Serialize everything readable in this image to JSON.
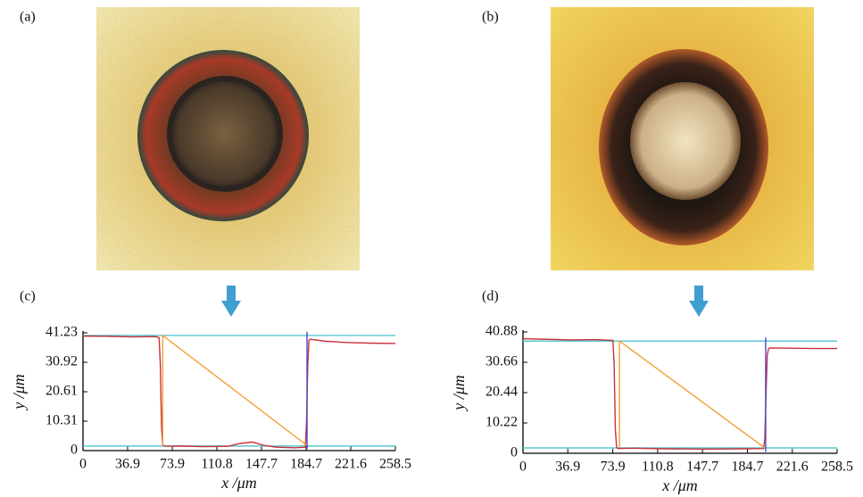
{
  "panel_labels": [
    "(a)",
    "(b)",
    "(c)",
    "(d)"
  ],
  "chart_data": [
    {
      "type": "line",
      "xlabel": "x /μm",
      "ylabel": "y /μm",
      "xlim": [
        0,
        258.5
      ],
      "xticks": [
        0,
        36.9,
        73.9,
        110.8,
        147.7,
        184.7,
        221.6,
        258.5
      ],
      "ylim": [
        0,
        41.23
      ],
      "yticks": [
        0,
        10.31,
        20.61,
        30.92,
        41.23
      ],
      "series": [
        {
          "color": "#5cc6d6",
          "x": [
            0,
            258.5
          ],
          "values": [
            40.3,
            40.3
          ]
        },
        {
          "color": "#5cc6d6",
          "x": [
            0,
            258.5
          ],
          "values": [
            1.6,
            1.6
          ]
        },
        {
          "color": "#c8323a",
          "x": [
            0,
            20,
            40,
            60,
            63,
            64,
            65,
            66,
            68,
            80,
            100,
            120,
            130,
            140,
            150,
            160,
            175,
            184,
            185,
            186,
            187,
            188,
            200,
            220,
            240,
            258.5
          ],
          "values": [
            40.1,
            40.0,
            39.8,
            39.9,
            39.5,
            30,
            8,
            2.0,
            1.5,
            1.6,
            1.4,
            1.5,
            2.5,
            3.0,
            1.8,
            1.2,
            1.0,
            1.2,
            10,
            30,
            38.5,
            39.0,
            38.3,
            37.8,
            37.6,
            37.5
          ]
        },
        {
          "color": "#f0a033",
          "x": [
            66,
            66,
            186
          ],
          "values": [
            1.6,
            40.3,
            1.6
          ]
        },
        {
          "color": "#4a46c8",
          "x": [
            185.4,
            185.4
          ],
          "values": [
            0.5,
            41.5
          ]
        }
      ]
    },
    {
      "type": "line",
      "xlabel": "x /μm",
      "ylabel": "y /μm",
      "xlim": [
        0,
        258.5
      ],
      "xticks": [
        0,
        36.9,
        73.9,
        110.8,
        147.7,
        184.7,
        221.6,
        258.5
      ],
      "ylim": [
        0,
        40.88
      ],
      "yticks": [
        0,
        10.22,
        20.44,
        30.66,
        40.88
      ],
      "series": [
        {
          "color": "#5cc6d6",
          "x": [
            0,
            258.5
          ],
          "values": [
            37.8,
            37.8
          ]
        },
        {
          "color": "#5cc6d6",
          "x": [
            0,
            258.5
          ],
          "values": [
            1.8,
            1.8
          ]
        },
        {
          "color": "#c8323a",
          "x": [
            0,
            20,
            40,
            60,
            74,
            75,
            76,
            77,
            78,
            90,
            120,
            150,
            180,
            198,
            199,
            200,
            201,
            202,
            203,
            220,
            240,
            258.5
          ],
          "values": [
            38.6,
            38.4,
            38.2,
            38.3,
            38.0,
            30,
            8,
            2.2,
            1.6,
            1.7,
            1.5,
            1.4,
            1.5,
            1.6,
            5,
            20,
            33,
            35.2,
            35.5,
            35.4,
            35.3,
            35.3
          ]
        },
        {
          "color": "#f0a033",
          "x": [
            79.4,
            79.4,
            199
          ],
          "values": [
            1.8,
            37.8,
            1.8
          ]
        },
        {
          "color": "#4a46c8",
          "x": [
            199.7,
            199.7
          ],
          "values": [
            0.5,
            39
          ]
        }
      ]
    }
  ]
}
